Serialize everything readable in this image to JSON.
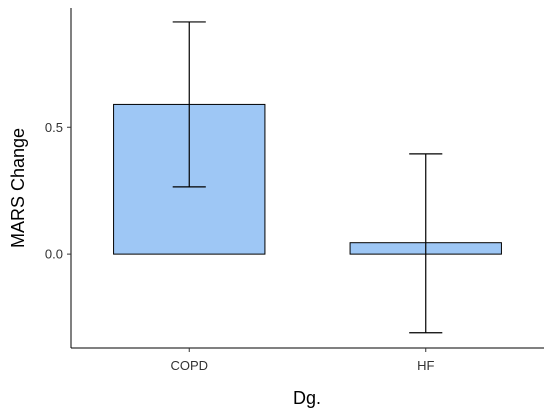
{
  "chart_data": {
    "type": "bar",
    "title": "",
    "xlabel": "Dg.",
    "ylabel": "MARS Change",
    "categories": [
      "COPD",
      "HF"
    ],
    "values": [
      0.59,
      0.045
    ],
    "error_low": [
      0.265,
      -0.31
    ],
    "error_high": [
      0.915,
      0.395
    ],
    "ylim": [
      -0.37,
      0.97
    ],
    "yticks": [
      0.0,
      0.5
    ],
    "ytick_labels": [
      "0.0",
      "0.5"
    ],
    "grid": false,
    "legend": "none",
    "colors": {
      "bar_fill": "#9ec7f5",
      "bar_stroke": "#000000",
      "axis": "#000000"
    }
  }
}
